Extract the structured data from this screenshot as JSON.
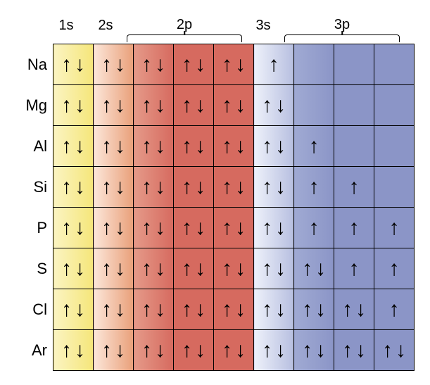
{
  "type": "orbital-diagram-table",
  "background_color": "#ffffff",
  "cell": {
    "width": 56,
    "height": 56,
    "border_color": "#000000",
    "border_width": 1.5
  },
  "label_col_width": 46,
  "font": {
    "header_size": 20,
    "row_label_size": 22,
    "arrow_size": 30,
    "arrow_color": "#000000"
  },
  "orbitals": [
    {
      "name": "1s",
      "span": 1,
      "bracket": false
    },
    {
      "name": "2s",
      "span": 1,
      "bracket": false
    },
    {
      "name": "2p",
      "span": 3,
      "bracket": true
    },
    {
      "name": "3s",
      "span": 1,
      "bracket": false
    },
    {
      "name": "3p",
      "span": 3,
      "bracket": true
    }
  ],
  "columns": [
    {
      "orbital": "1s",
      "grad_from": "#fbf4c2",
      "grad_to": "#f5e67a"
    },
    {
      "orbital": "2s",
      "grad_from": "#fce6d9",
      "grad_to": "#e9a07a"
    },
    {
      "orbital": "2p",
      "grad_from": "#e59a89",
      "grad_to": "#d66a5f"
    },
    {
      "orbital": "2p",
      "grad_from": "#d66a5f",
      "grad_to": "#d66a5f"
    },
    {
      "orbital": "2p",
      "grad_from": "#d66a5f",
      "grad_to": "#d66a5f"
    },
    {
      "orbital": "3s",
      "grad_from": "#eef1fa",
      "grad_to": "#b7bfe0"
    },
    {
      "orbital": "3p",
      "grad_from": "#a0aad3",
      "grad_to": "#8b95c7"
    },
    {
      "orbital": "3p",
      "grad_from": "#8b95c7",
      "grad_to": "#8b95c7"
    },
    {
      "orbital": "3p",
      "grad_from": "#8b95c7",
      "grad_to": "#8b95c7"
    }
  ],
  "elements": [
    {
      "sym": "Na",
      "cells": [
        2,
        2,
        2,
        2,
        2,
        1,
        0,
        0,
        0
      ]
    },
    {
      "sym": "Mg",
      "cells": [
        2,
        2,
        2,
        2,
        2,
        2,
        0,
        0,
        0
      ]
    },
    {
      "sym": "Al",
      "cells": [
        2,
        2,
        2,
        2,
        2,
        2,
        1,
        0,
        0
      ]
    },
    {
      "sym": "Si",
      "cells": [
        2,
        2,
        2,
        2,
        2,
        2,
        1,
        1,
        0
      ]
    },
    {
      "sym": "P",
      "cells": [
        2,
        2,
        2,
        2,
        2,
        2,
        1,
        1,
        1
      ]
    },
    {
      "sym": "S",
      "cells": [
        2,
        2,
        2,
        2,
        2,
        2,
        2,
        1,
        1
      ]
    },
    {
      "sym": "Cl",
      "cells": [
        2,
        2,
        2,
        2,
        2,
        2,
        2,
        2,
        1
      ]
    },
    {
      "sym": "Ar",
      "cells": [
        2,
        2,
        2,
        2,
        2,
        2,
        2,
        2,
        2
      ]
    }
  ],
  "glyphs": {
    "up": "↑",
    "down": "↓"
  }
}
